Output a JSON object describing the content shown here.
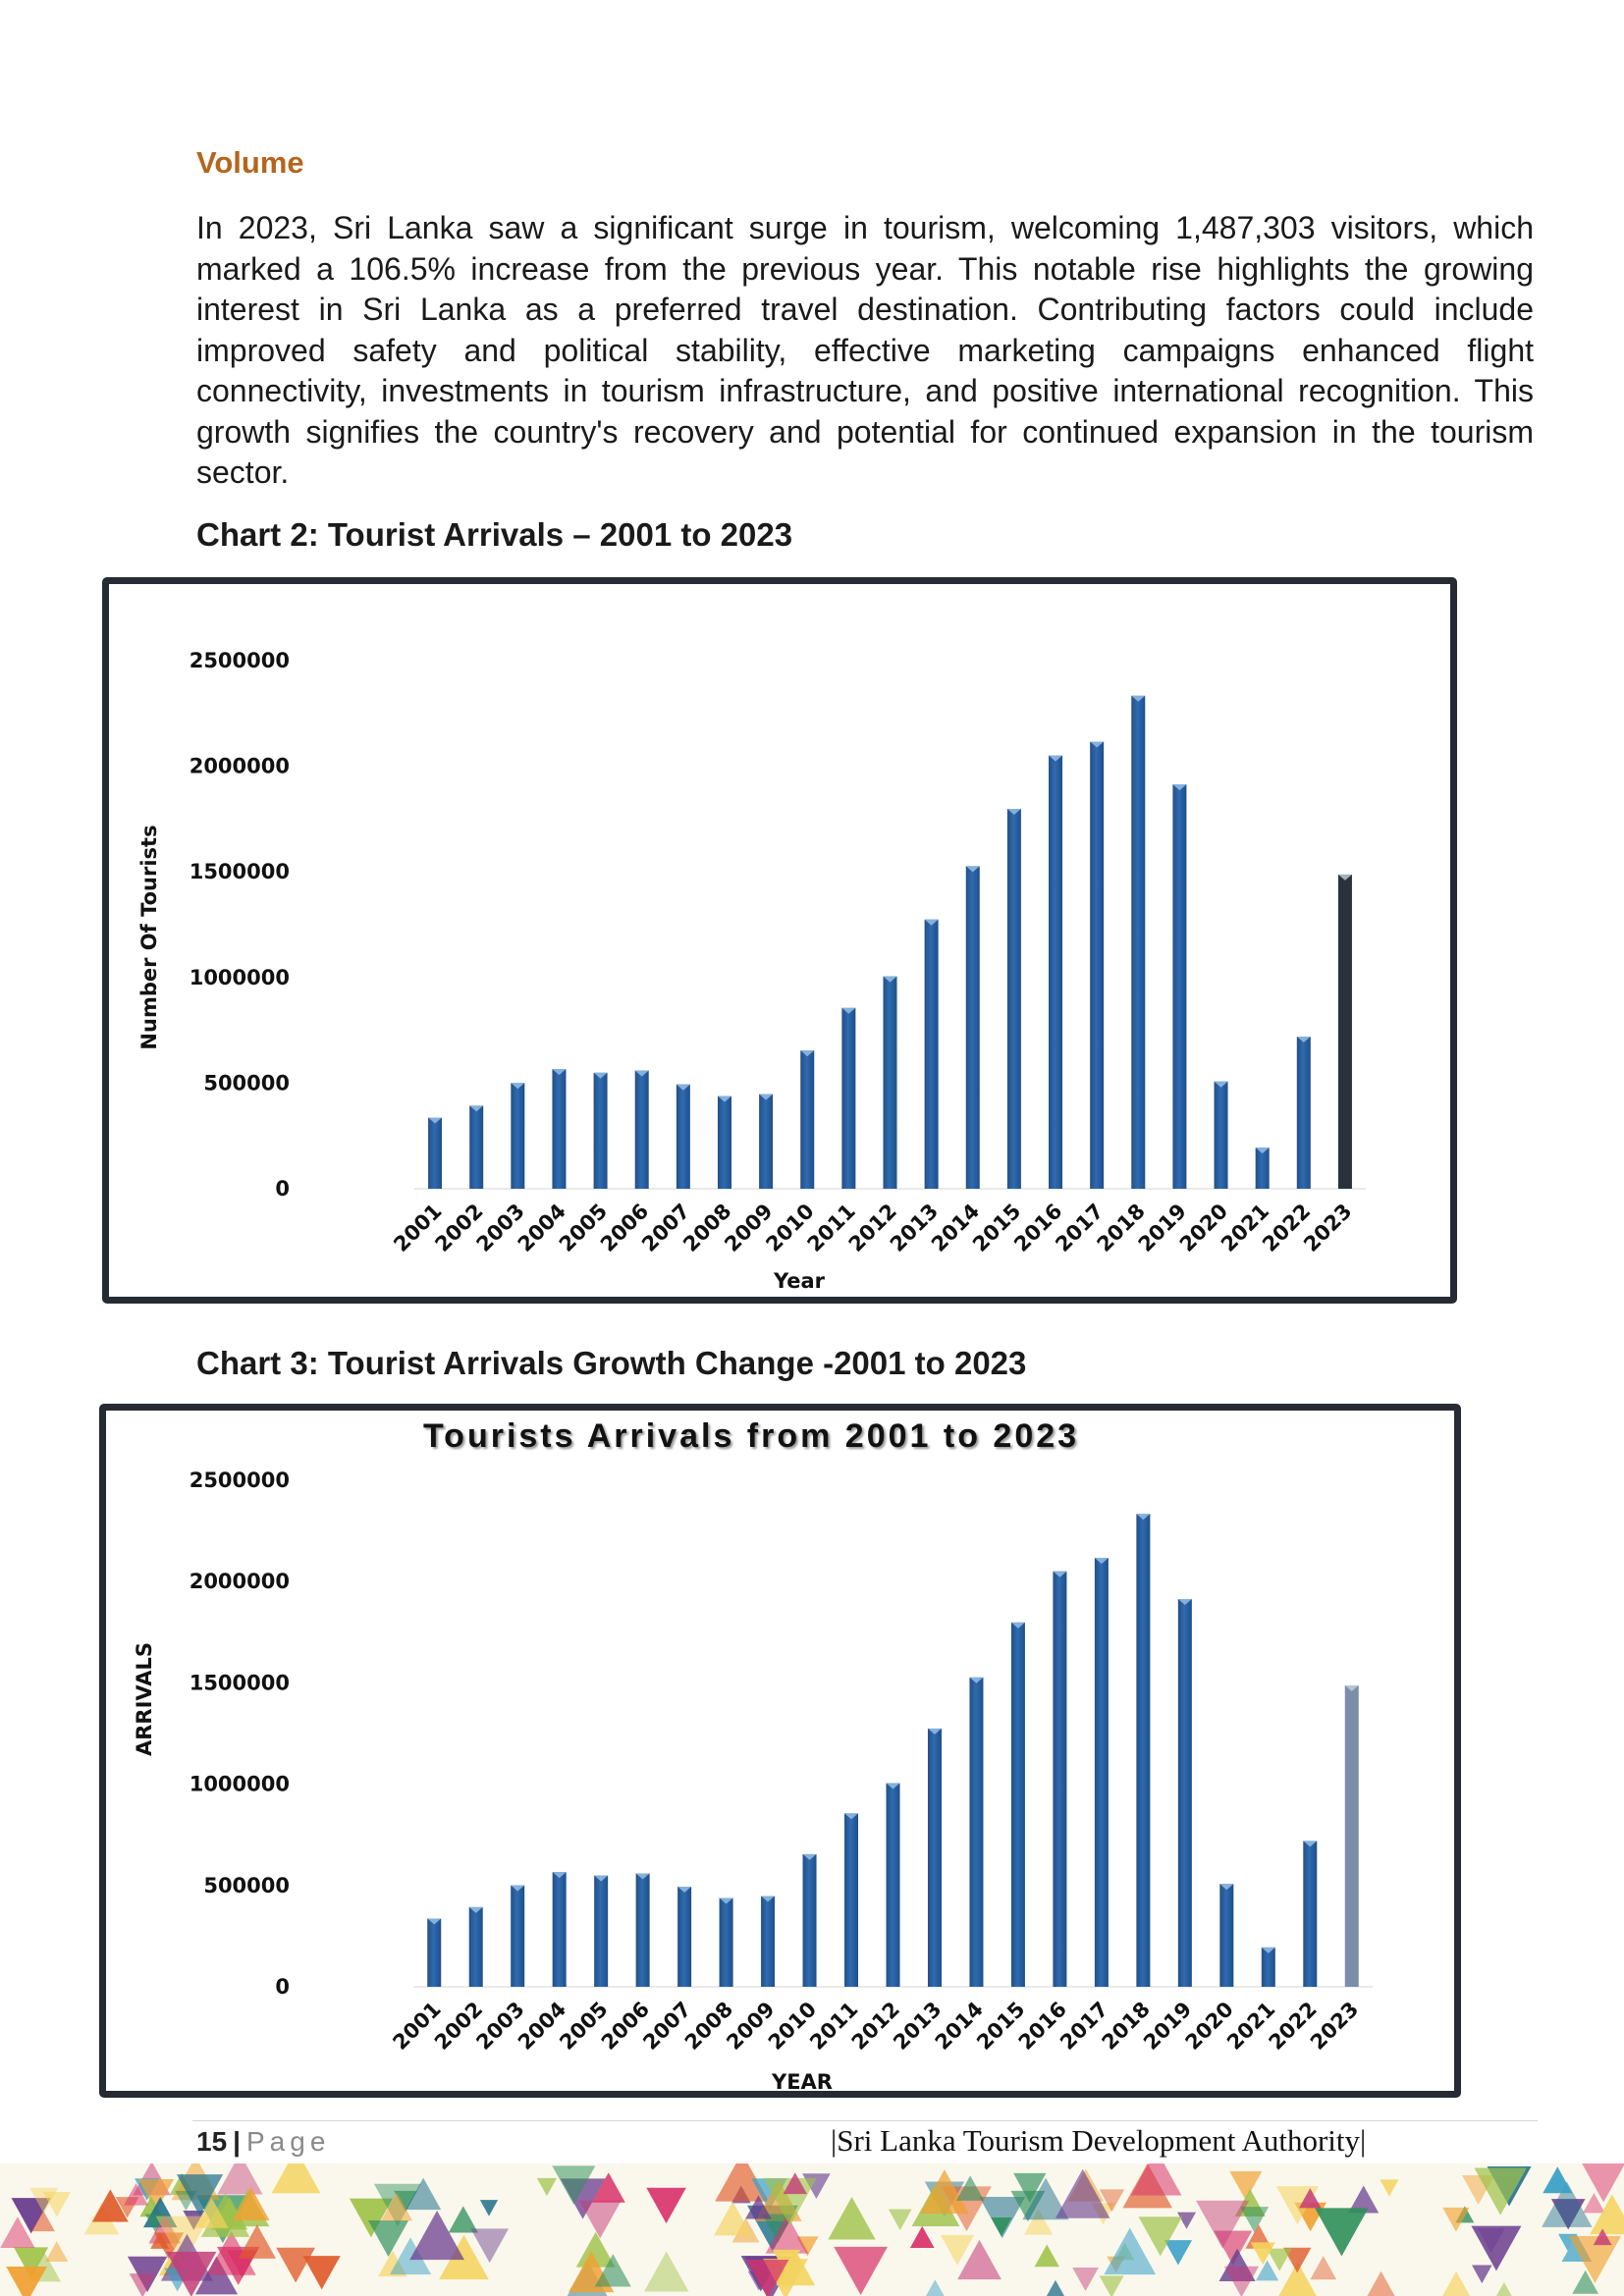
{
  "section_heading": "Volume",
  "paragraph": "In 2023, Sri Lanka saw a significant surge in tourism, welcoming 1,487,303 visitors, which marked a 106.5% increase from the previous year. This notable rise highlights the growing interest in Sri Lanka as a preferred travel destination. Contributing factors could include improved safety and political stability, effective marketing campaigns enhanced flight connectivity, investments in tourism infrastructure, and positive international recognition. This growth signifies the country's recovery and potential for continued expansion in the tourism sector.",
  "chart2_caption": "Chart 2: Tourist Arrivals – 2001 to 2023",
  "chart3_caption": "Chart 3: Tourist Arrivals Growth Change -2001 to 2023",
  "chart_data": [
    {
      "type": "bar",
      "title": "",
      "xlabel": "Year",
      "ylabel": "Number Of Tourists",
      "ylim": [
        0,
        2500000
      ],
      "yticks": [
        "0",
        "500000",
        "1000000",
        "1500000",
        "2000000",
        "2500000"
      ],
      "categories": [
        "2001",
        "2002",
        "2003",
        "2004",
        "2005",
        "2006",
        "2007",
        "2008",
        "2009",
        "2010",
        "2011",
        "2012",
        "2013",
        "2014",
        "2015",
        "2016",
        "2017",
        "2018",
        "2019",
        "2020",
        "2021",
        "2022",
        "2023"
      ],
      "values": [
        336794,
        393171,
        500642,
        566202,
        549308,
        559603,
        494008,
        438475,
        447890,
        654476,
        855975,
        1005605,
        1274593,
        1527153,
        1798380,
        2050832,
        2116407,
        2333796,
        1913702,
        507704,
        194495,
        719978,
        1487303
      ],
      "bar_color": "#2e6bb0",
      "highlight_color": "#2b323c",
      "highlight_category": "2023",
      "grid": false
    },
    {
      "type": "bar",
      "title": "Tourists  Arrivals from 2001 to 2023",
      "xlabel": "YEAR",
      "ylabel": "ARRIVALS",
      "ylim": [
        0,
        2500000
      ],
      "yticks": [
        "0",
        "500000",
        "1000000",
        "1500000",
        "2000000",
        "2500000"
      ],
      "categories": [
        "2001",
        "2002",
        "2003",
        "2004",
        "2005",
        "2006",
        "2007",
        "2008",
        "2009",
        "2010",
        "2011",
        "2012",
        "2013",
        "2014",
        "2015",
        "2016",
        "2017",
        "2018",
        "2019",
        "2020",
        "2021",
        "2022",
        "2023"
      ],
      "values": [
        336794,
        393171,
        500642,
        566202,
        549308,
        559603,
        494008,
        438475,
        447890,
        654476,
        855975,
        1005605,
        1274593,
        1527153,
        1798380,
        2050832,
        2116407,
        2333796,
        1913702,
        507704,
        194495,
        719978,
        1487303
      ],
      "bar_color": "#2e6bb0",
      "highlight_color": "#7b8ea8",
      "highlight_category": "2023",
      "grid": false
    }
  ],
  "footer": {
    "page_number": "15",
    "separator": "|",
    "page_label": "Page",
    "organization": "|Sri Lanka Tourism Development Authority|"
  }
}
